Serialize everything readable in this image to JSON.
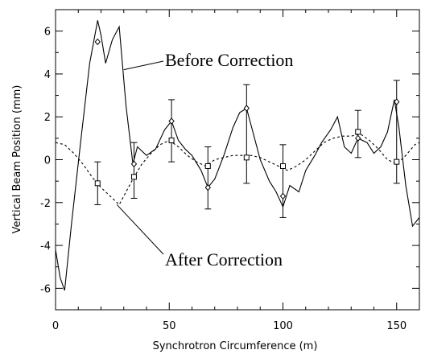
{
  "chart_data": {
    "type": "line",
    "title": "",
    "xlabel": "Synchrotron Circumference (m)",
    "ylabel": "Vertical Beam Position (mm)",
    "xlim": [
      0,
      160
    ],
    "ylim": [
      -7,
      7
    ],
    "x_ticks": [
      0,
      50,
      100,
      150
    ],
    "y_ticks": [
      -6,
      -4,
      -2,
      0,
      2,
      4,
      6
    ],
    "grid": false,
    "annotations": [
      {
        "text": "Before Correction",
        "points_to": {
          "x": 30,
          "y": 4.2
        }
      },
      {
        "text": "After Correction",
        "points_to": {
          "x": 27,
          "y": -2.1
        }
      }
    ],
    "series": [
      {
        "name": "Before Correction",
        "style": "solid",
        "x": [
          0,
          2,
          4,
          7,
          11,
          15,
          18.5,
          20,
          22,
          25,
          28,
          31,
          34,
          36,
          40,
          44,
          48,
          51,
          54,
          57,
          60,
          64,
          67,
          70,
          74,
          78,
          81,
          84,
          87,
          90,
          94,
          97,
          100,
          103,
          107,
          110,
          114,
          117,
          121,
          124,
          127,
          130,
          133,
          137,
          140,
          143,
          146,
          149,
          151,
          154,
          157,
          160
        ],
        "y": [
          -4.2,
          -5.5,
          -6.1,
          -3.0,
          0.8,
          4.5,
          6.5,
          5.8,
          4.5,
          5.6,
          6.2,
          2.5,
          -0.2,
          0.6,
          0.2,
          0.5,
          1.4,
          1.8,
          0.9,
          0.5,
          0.2,
          -0.5,
          -1.3,
          -0.9,
          0.2,
          1.5,
          2.2,
          2.4,
          1.2,
          0.0,
          -1.0,
          -1.5,
          -2.2,
          -1.2,
          -1.5,
          -0.5,
          0.2,
          0.8,
          1.4,
          2.0,
          0.6,
          0.3,
          1.0,
          0.8,
          0.3,
          0.6,
          1.3,
          2.8,
          1.5,
          -1.2,
          -3.1,
          -2.7
        ],
        "markers": {
          "shape": "diamond",
          "x": [
            18.5,
            34.5,
            51,
            67,
            84,
            100,
            133,
            150
          ],
          "y": [
            5.5,
            -0.2,
            1.8,
            -1.3,
            2.4,
            -1.7,
            1.0,
            2.7
          ]
        }
      },
      {
        "name": "After Correction",
        "style": "dashed",
        "x": [
          0,
          4,
          8,
          12,
          16,
          20,
          24,
          28,
          31,
          34,
          38,
          42,
          46,
          50,
          54,
          58,
          62,
          66,
          70,
          74,
          78,
          82,
          86,
          90,
          94,
          98,
          102,
          106,
          110,
          114,
          118,
          122,
          126,
          130,
          134,
          138,
          142,
          146,
          150,
          154,
          158,
          160
        ],
        "y": [
          0.8,
          0.7,
          0.3,
          -0.2,
          -0.8,
          -1.3,
          -1.7,
          -2.1,
          -1.5,
          -0.9,
          -0.2,
          0.3,
          0.7,
          0.9,
          0.6,
          0.2,
          -0.1,
          -0.3,
          0.0,
          0.1,
          0.2,
          0.2,
          0.2,
          0.1,
          -0.1,
          -0.3,
          -0.5,
          -0.3,
          0.0,
          0.4,
          0.8,
          1.0,
          1.1,
          1.1,
          1.2,
          0.9,
          0.5,
          0.0,
          -0.2,
          0.2,
          0.7,
          0.8
        ],
        "markers": {
          "shape": "square",
          "x": [
            18.5,
            34.5,
            51,
            67,
            84,
            100,
            133,
            150
          ],
          "y": [
            -1.1,
            -0.8,
            0.9,
            -0.3,
            0.1,
            -0.3,
            1.3,
            -0.1
          ]
        }
      }
    ],
    "error_bars": [
      {
        "x": 18.5,
        "low": -2.1,
        "high": -0.1
      },
      {
        "x": 34.5,
        "low": -1.8,
        "high": 0.8
      },
      {
        "x": 51,
        "low": -0.1,
        "high": 2.8
      },
      {
        "x": 67,
        "low": -2.3,
        "high": 0.6
      },
      {
        "x": 84,
        "low": -1.1,
        "high": 3.5
      },
      {
        "x": 100,
        "low": -2.7,
        "high": 0.7
      },
      {
        "x": 133,
        "low": 0.1,
        "high": 2.3
      },
      {
        "x": 150,
        "low": -1.1,
        "high": 3.7
      }
    ]
  }
}
